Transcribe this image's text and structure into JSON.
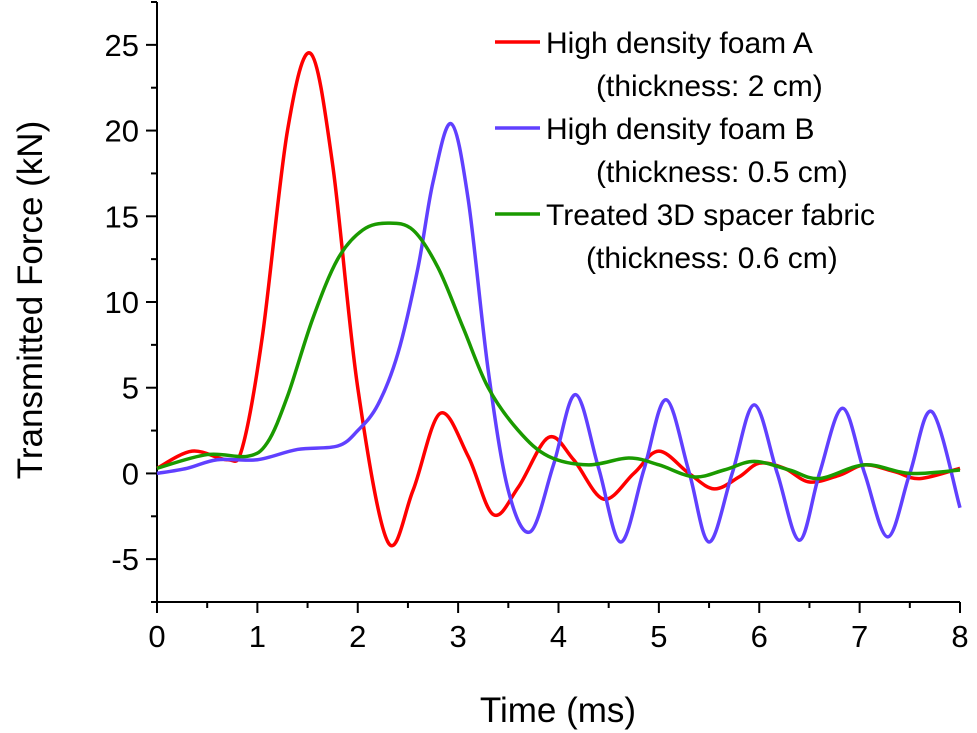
{
  "chart_data": {
    "type": "line",
    "title": "",
    "xlabel": "Time (ms)",
    "ylabel": "Transmitted Force (kN)",
    "xlim": [
      0,
      8
    ],
    "ylim": [
      -7.5,
      27.5
    ],
    "xticks": [
      0,
      1,
      2,
      3,
      4,
      5,
      6,
      7,
      8
    ],
    "yticks": [
      -5,
      0,
      5,
      10,
      15,
      20,
      25
    ],
    "xtick_labels": [
      "0",
      "1",
      "2",
      "3",
      "4",
      "5",
      "6",
      "7",
      "8"
    ],
    "ytick_labels": [
      "-5",
      "0",
      "5",
      "10",
      "15",
      "20",
      "25"
    ],
    "grid": false,
    "legend_position": "top-right",
    "series": [
      {
        "name": "High density foam A",
        "sub": "(thickness: 2 cm)",
        "color": "#ff0000",
        "x": [
          0,
          0.35,
          0.7,
          0.85,
          1.05,
          1.3,
          1.53,
          1.75,
          2.0,
          2.3,
          2.55,
          2.82,
          3.1,
          3.35,
          3.6,
          3.9,
          4.15,
          4.45,
          4.75,
          5.0,
          5.3,
          5.55,
          5.8,
          6.0,
          6.25,
          6.5,
          6.8,
          7.05,
          7.35,
          7.6,
          8.0
        ],
        "y": [
          0.3,
          1.3,
          0.8,
          1.5,
          8,
          20,
          24.5,
          18,
          5,
          -4,
          -1,
          3.5,
          1,
          -2.4,
          -0.8,
          2.1,
          0.8,
          -1.5,
          0,
          1.3,
          0,
          -0.9,
          -0.2,
          0.6,
          0.3,
          -0.5,
          -0.1,
          0.5,
          0.1,
          -0.3,
          0.3
        ]
      },
      {
        "name": "High density foam B",
        "sub": "(thickness: 0.5 cm)",
        "color": "#6040ff",
        "x": [
          0,
          0.3,
          0.6,
          1.0,
          1.4,
          1.8,
          2.0,
          2.2,
          2.4,
          2.6,
          2.75,
          2.93,
          3.1,
          3.3,
          3.5,
          3.72,
          3.95,
          4.17,
          4.4,
          4.62,
          4.85,
          5.07,
          5.3,
          5.5,
          5.73,
          5.95,
          6.18,
          6.4,
          6.6,
          6.83,
          7.05,
          7.28,
          7.5,
          7.72,
          8.0
        ],
        "y": [
          0,
          0.3,
          0.8,
          0.8,
          1.4,
          1.6,
          2.5,
          4,
          7,
          12,
          17,
          20.4,
          16,
          6,
          -1,
          -3.4,
          0.5,
          4.6,
          0.3,
          -4,
          0.2,
          4.3,
          0.1,
          -4,
          0,
          4,
          0,
          -3.9,
          0,
          3.8,
          0,
          -3.7,
          0,
          3.6,
          -2
        ]
      },
      {
        "name": "Treated 3D spacer fabric",
        "sub": "(thickness: 0.6 cm)",
        "color": "#1a9a00",
        "x": [
          0,
          0.5,
          0.9,
          1.1,
          1.3,
          1.55,
          1.8,
          2.05,
          2.3,
          2.55,
          2.8,
          3.05,
          3.3,
          3.6,
          3.9,
          4.3,
          4.7,
          5.0,
          5.35,
          5.65,
          5.95,
          6.3,
          6.6,
          7.05,
          7.5,
          8.0
        ],
        "y": [
          0.3,
          1.1,
          1.0,
          1.8,
          4.5,
          9,
          12.5,
          14.2,
          14.6,
          14.2,
          12,
          8.5,
          5,
          2.5,
          1,
          0.5,
          0.9,
          0.5,
          -0.2,
          0.2,
          0.7,
          0.2,
          -0.3,
          0.5,
          0,
          0.2
        ]
      }
    ]
  }
}
